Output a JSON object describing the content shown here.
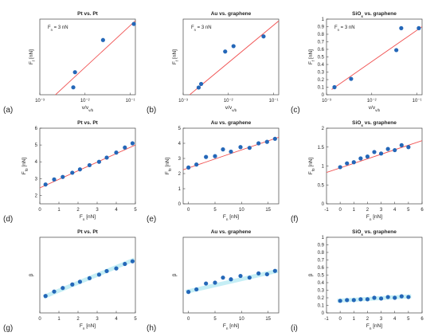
{
  "panel_labels": [
    "(a)",
    "(b)",
    "(c)",
    "(d)",
    "(e)",
    "(f)",
    "(g)",
    "(h)",
    "(i)"
  ],
  "colors": {
    "points": "#2467b8",
    "fit": "#f05050",
    "axis": "#444444",
    "text": "#222222"
  },
  "chart_data": [
    {
      "type": "scatter",
      "title": "Pt vs. Pt",
      "annotation": "F_n = 3 nN",
      "xlabel": "v/v_v/b",
      "ylabel": "F_f [nN]",
      "xscale": "log",
      "xlim": [
        0.001,
        0.13
      ],
      "ylim": [
        0.55,
        2.9
      ],
      "xticks": [
        0.001,
        0.01,
        0.1
      ],
      "xtick_labels": [
        "10⁻³",
        "10⁻²",
        "10⁻¹"
      ],
      "yticks": [],
      "ytick_labels": [],
      "points": [
        [
          0.0055,
          0.78
        ],
        [
          0.006,
          1.25
        ],
        [
          0.025,
          2.25
        ],
        [
          0.12,
          2.75
        ]
      ],
      "fit": [
        [
          0.001,
          0.1
        ],
        [
          0.13,
          2.85
        ]
      ],
      "fit_glow": false
    },
    {
      "type": "scatter",
      "title": "Au vs. graphene",
      "annotation": "F_n = 3 nN",
      "xlabel": "v/v_v/b",
      "ylabel": "F_f [nN]",
      "xscale": "log",
      "xlim": [
        0.001,
        0.13
      ],
      "ylim": [
        0.0,
        2.1
      ],
      "xticks": [
        0.001,
        0.01,
        0.1
      ],
      "xtick_labels": [
        "10⁻³",
        "10⁻²",
        "10⁻¹"
      ],
      "yticks": [],
      "ytick_labels": [],
      "points": [
        [
          0.0022,
          0.2
        ],
        [
          0.0025,
          0.3
        ],
        [
          0.0085,
          1.2
        ],
        [
          0.013,
          1.35
        ],
        [
          0.06,
          1.62
        ]
      ],
      "fit": [
        [
          0.001,
          -0.15
        ],
        [
          0.13,
          2.05
        ]
      ],
      "fit_glow": false
    },
    {
      "type": "scatter",
      "title": "SiO_x vs. graphene",
      "annotation": "F_n = 3 nN",
      "xlabel": "v/v_v/b",
      "ylabel": "F_f [nN]",
      "xscale": "log",
      "xlim": [
        0.001,
        0.13
      ],
      "ylim": [
        0,
        1
      ],
      "xticks": [
        0.001,
        0.01,
        0.1
      ],
      "xtick_labels": [
        "10⁻³",
        "10⁻²",
        "10⁻¹"
      ],
      "yticks": [
        0,
        0.1,
        0.2,
        0.3,
        0.4,
        0.5,
        0.6,
        0.7,
        0.8,
        0.9,
        1
      ],
      "ytick_labels": [
        "0",
        "0.1",
        "0.2",
        "0.3",
        "0.4",
        "0.5",
        "0.6",
        "0.7",
        "0.8",
        "0.9",
        "1"
      ],
      "points": [
        [
          0.0015,
          0.1
        ],
        [
          0.0035,
          0.21
        ],
        [
          0.035,
          0.59
        ],
        [
          0.045,
          0.88
        ],
        [
          0.11,
          0.88
        ]
      ],
      "fit": [
        [
          0.0013,
          0.07
        ],
        [
          0.13,
          0.9
        ]
      ],
      "fit_glow": false
    },
    {
      "type": "scatter",
      "title": "Pt vs. Pt",
      "annotation": "",
      "xlabel": "F_n [nN]",
      "ylabel": "F_f0 [nN]",
      "xscale": "linear",
      "xlim": [
        0,
        5
      ],
      "ylim": [
        1.5,
        6
      ],
      "xticks": [
        0,
        1,
        2,
        3,
        4,
        5
      ],
      "xtick_labels": [
        "0",
        "1",
        "2",
        "3",
        "4",
        "5"
      ],
      "yticks": [
        2,
        3,
        4,
        5,
        6
      ],
      "ytick_labels": [
        "2",
        "3",
        "4",
        "5",
        "6"
      ],
      "points": [
        [
          0.3,
          2.65
        ],
        [
          0.75,
          2.95
        ],
        [
          1.2,
          3.1
        ],
        [
          1.7,
          3.35
        ],
        [
          2.1,
          3.55
        ],
        [
          2.6,
          3.8
        ],
        [
          3.1,
          4.0
        ],
        [
          3.5,
          4.25
        ],
        [
          4.0,
          4.55
        ],
        [
          4.45,
          4.85
        ],
        [
          4.85,
          5.1
        ]
      ],
      "fit": [
        [
          0,
          2.45
        ],
        [
          5,
          5.0
        ]
      ],
      "fit_glow": false
    },
    {
      "type": "scatter",
      "title": "Au vs. graphene",
      "annotation": "",
      "xlabel": "F_n [nN]",
      "ylabel": "F_f0 [nN]",
      "xscale": "linear",
      "xlim": [
        -1,
        17
      ],
      "ylim": [
        0,
        5
      ],
      "xticks": [
        0,
        5,
        10,
        15
      ],
      "xtick_labels": [
        "0",
        "5",
        "10",
        "15"
      ],
      "yticks": [
        0,
        1,
        2,
        3,
        4,
        5
      ],
      "ytick_labels": [
        "0",
        "1",
        "2",
        "3",
        "4",
        "5"
      ],
      "points": [
        [
          0,
          2.4
        ],
        [
          1.5,
          2.6
        ],
        [
          3.3,
          3.1
        ],
        [
          5,
          3.15
        ],
        [
          6.5,
          3.6
        ],
        [
          8,
          3.45
        ],
        [
          9.8,
          3.75
        ],
        [
          11.5,
          3.7
        ],
        [
          13.2,
          4.0
        ],
        [
          14.8,
          4.1
        ],
        [
          16.3,
          4.3
        ]
      ],
      "fit": [
        [
          -1,
          2.25
        ],
        [
          17,
          4.4
        ]
      ],
      "fit_glow": false
    },
    {
      "type": "scatter",
      "title": "SiO_x vs. graphene",
      "annotation": "",
      "xlabel": "F_n [nN]",
      "ylabel": "F_f0 [nN]",
      "xscale": "linear",
      "xlim": [
        -1,
        6
      ],
      "ylim": [
        0,
        2
      ],
      "xticks": [
        -1,
        0,
        1,
        2,
        3,
        4,
        5,
        6
      ],
      "xtick_labels": [
        "-1",
        "0",
        "1",
        "2",
        "3",
        "4",
        "5",
        "6"
      ],
      "yticks": [
        0,
        0.5,
        1,
        1.5,
        2
      ],
      "ytick_labels": [
        "0",
        "0.5",
        "1",
        "1.5",
        "2"
      ],
      "points": [
        [
          0,
          0.97
        ],
        [
          0.5,
          1.07
        ],
        [
          1,
          1.1
        ],
        [
          1.5,
          1.2
        ],
        [
          2,
          1.25
        ],
        [
          2.5,
          1.37
        ],
        [
          3,
          1.33
        ],
        [
          3.5,
          1.45
        ],
        [
          4,
          1.42
        ],
        [
          4.5,
          1.55
        ],
        [
          5,
          1.5
        ]
      ],
      "fit": [
        [
          -1,
          0.83
        ],
        [
          6,
          1.67
        ]
      ],
      "fit_glow": false
    },
    {
      "type": "scatter",
      "title": "Pt vs. Pt",
      "annotation": "",
      "xlabel": "F_n [nN]",
      "ylabel": "β",
      "xscale": "linear",
      "xlim": [
        0,
        5
      ],
      "ylim": [
        0.15,
        1.0
      ],
      "xticks": [
        0,
        1,
        2,
        3,
        4,
        5
      ],
      "xtick_labels": [
        "0",
        "1",
        "2",
        "3",
        "4",
        "5"
      ],
      "yticks": [],
      "ytick_labels": [],
      "points": [
        [
          0.3,
          0.34
        ],
        [
          0.75,
          0.39
        ],
        [
          1.2,
          0.43
        ],
        [
          1.7,
          0.47
        ],
        [
          2.1,
          0.5
        ],
        [
          2.6,
          0.54
        ],
        [
          3.1,
          0.58
        ],
        [
          3.5,
          0.62
        ],
        [
          4.0,
          0.65
        ],
        [
          4.45,
          0.7
        ],
        [
          4.85,
          0.73
        ]
      ],
      "fit": [
        [
          0.2,
          0.33
        ],
        [
          4.95,
          0.75
        ]
      ],
      "fit_glow": true
    },
    {
      "type": "scatter",
      "title": "Au vs. graphene",
      "annotation": "",
      "xlabel": "F_n [nN]",
      "ylabel": "β",
      "xscale": "linear",
      "xlim": [
        -1,
        17
      ],
      "ylim": [
        0.1,
        1.0
      ],
      "xticks": [
        0,
        5,
        10,
        15
      ],
      "xtick_labels": [
        "0",
        "5",
        "10",
        "15"
      ],
      "yticks": [],
      "ytick_labels": [],
      "points": [
        [
          0,
          0.35
        ],
        [
          1.5,
          0.38
        ],
        [
          3.3,
          0.45
        ],
        [
          5,
          0.46
        ],
        [
          6.5,
          0.52
        ],
        [
          8,
          0.5
        ],
        [
          9.8,
          0.54
        ],
        [
          11.5,
          0.52
        ],
        [
          13.2,
          0.57
        ],
        [
          14.8,
          0.56
        ],
        [
          16.3,
          0.6
        ]
      ],
      "fit": [
        [
          -0.5,
          0.35
        ],
        [
          16.8,
          0.6
        ]
      ],
      "fit_glow": true
    },
    {
      "type": "scatter",
      "title": "SiO_x vs. graphene",
      "annotation": "",
      "xlabel": "F_n [nN]",
      "ylabel": "β",
      "xscale": "linear",
      "xlim": [
        -1,
        6
      ],
      "ylim": [
        0,
        1
      ],
      "xticks": [
        -1,
        0,
        1,
        2,
        3,
        4,
        5,
        6
      ],
      "xtick_labels": [
        "-1",
        "0",
        "1",
        "2",
        "3",
        "4",
        "5",
        "6"
      ],
      "yticks": [
        0,
        0.1,
        0.2,
        0.3,
        0.4,
        0.5,
        0.6,
        0.7,
        0.8,
        0.9,
        1
      ],
      "ytick_labels": [
        "0",
        "0.1",
        "0.2",
        "0.3",
        "0.4",
        "0.5",
        "0.6",
        "0.7",
        "0.8",
        "0.9",
        "1"
      ],
      "points": [
        [
          0,
          0.16
        ],
        [
          0.5,
          0.17
        ],
        [
          1,
          0.17
        ],
        [
          1.5,
          0.18
        ],
        [
          2,
          0.18
        ],
        [
          2.5,
          0.2
        ],
        [
          3,
          0.19
        ],
        [
          3.5,
          0.21
        ],
        [
          4,
          0.2
        ],
        [
          4.5,
          0.22
        ],
        [
          5,
          0.21
        ]
      ],
      "fit": [
        [
          -0.2,
          0.16
        ],
        [
          5.2,
          0.22
        ]
      ],
      "fit_glow": true
    }
  ]
}
